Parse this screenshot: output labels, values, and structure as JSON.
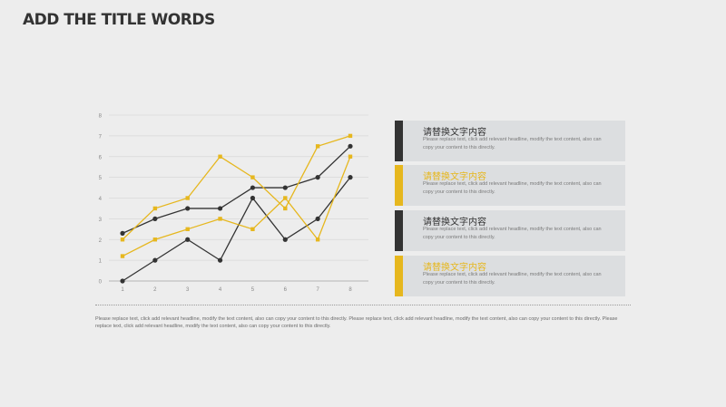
{
  "page": {
    "title": "ADD THE TITLE WORDS",
    "footer_text": "Please replace text, click add relevant headline, modify the text content, also can copy your content to this directly. Please replace text, click add relevant headline, modify the text content, also can copy your content to this directly. Please replace text, click add relevant headline, modify the text content, also can copy your content to this directly."
  },
  "colors": {
    "dark": "#333333",
    "accent": "#e6b71e",
    "background": "#ededed",
    "card_bg": "#dcdee0"
  },
  "cards": [
    {
      "title": "请替换文字内容",
      "body": "Please replace text, click add relevant headline, modify the text content, also can copy your content to this directly.",
      "accent": "dark"
    },
    {
      "title": "请替换文字内容",
      "body": "Please replace text, click add relevant headline, modify the text content, also can copy your content to this directly.",
      "accent": "yellow"
    },
    {
      "title": "请替换文字内容",
      "body": "Please replace text, click add relevant headline, modify the text content, also can copy your content to this directly.",
      "accent": "dark"
    },
    {
      "title": "请替换文字内容",
      "body": "Please replace text, click add relevant headline, modify the text content, also can copy your content to this directly.",
      "accent": "yellow"
    }
  ],
  "chart_data": {
    "type": "line",
    "x": [
      1,
      2,
      3,
      4,
      5,
      6,
      7,
      8
    ],
    "ylim": [
      0,
      8
    ],
    "yticks": [
      0,
      1,
      2,
      3,
      4,
      5,
      6,
      7,
      8
    ],
    "grid": true,
    "series": [
      {
        "color": "#333333",
        "marker": "circle",
        "values": [
          0,
          1,
          2,
          1,
          4,
          2,
          3,
          5
        ]
      },
      {
        "color": "#333333",
        "marker": "circle",
        "values": [
          2.3,
          3,
          3.5,
          3.5,
          4.5,
          4.5,
          5,
          6.5
        ]
      },
      {
        "color": "#e6b71e",
        "marker": "square",
        "values": [
          1.2,
          2,
          2.5,
          3,
          2.5,
          4,
          2,
          6
        ]
      },
      {
        "color": "#e6b71e",
        "marker": "square",
        "values": [
          2,
          3.5,
          4,
          6,
          5,
          3.5,
          6.5,
          7
        ]
      }
    ]
  }
}
